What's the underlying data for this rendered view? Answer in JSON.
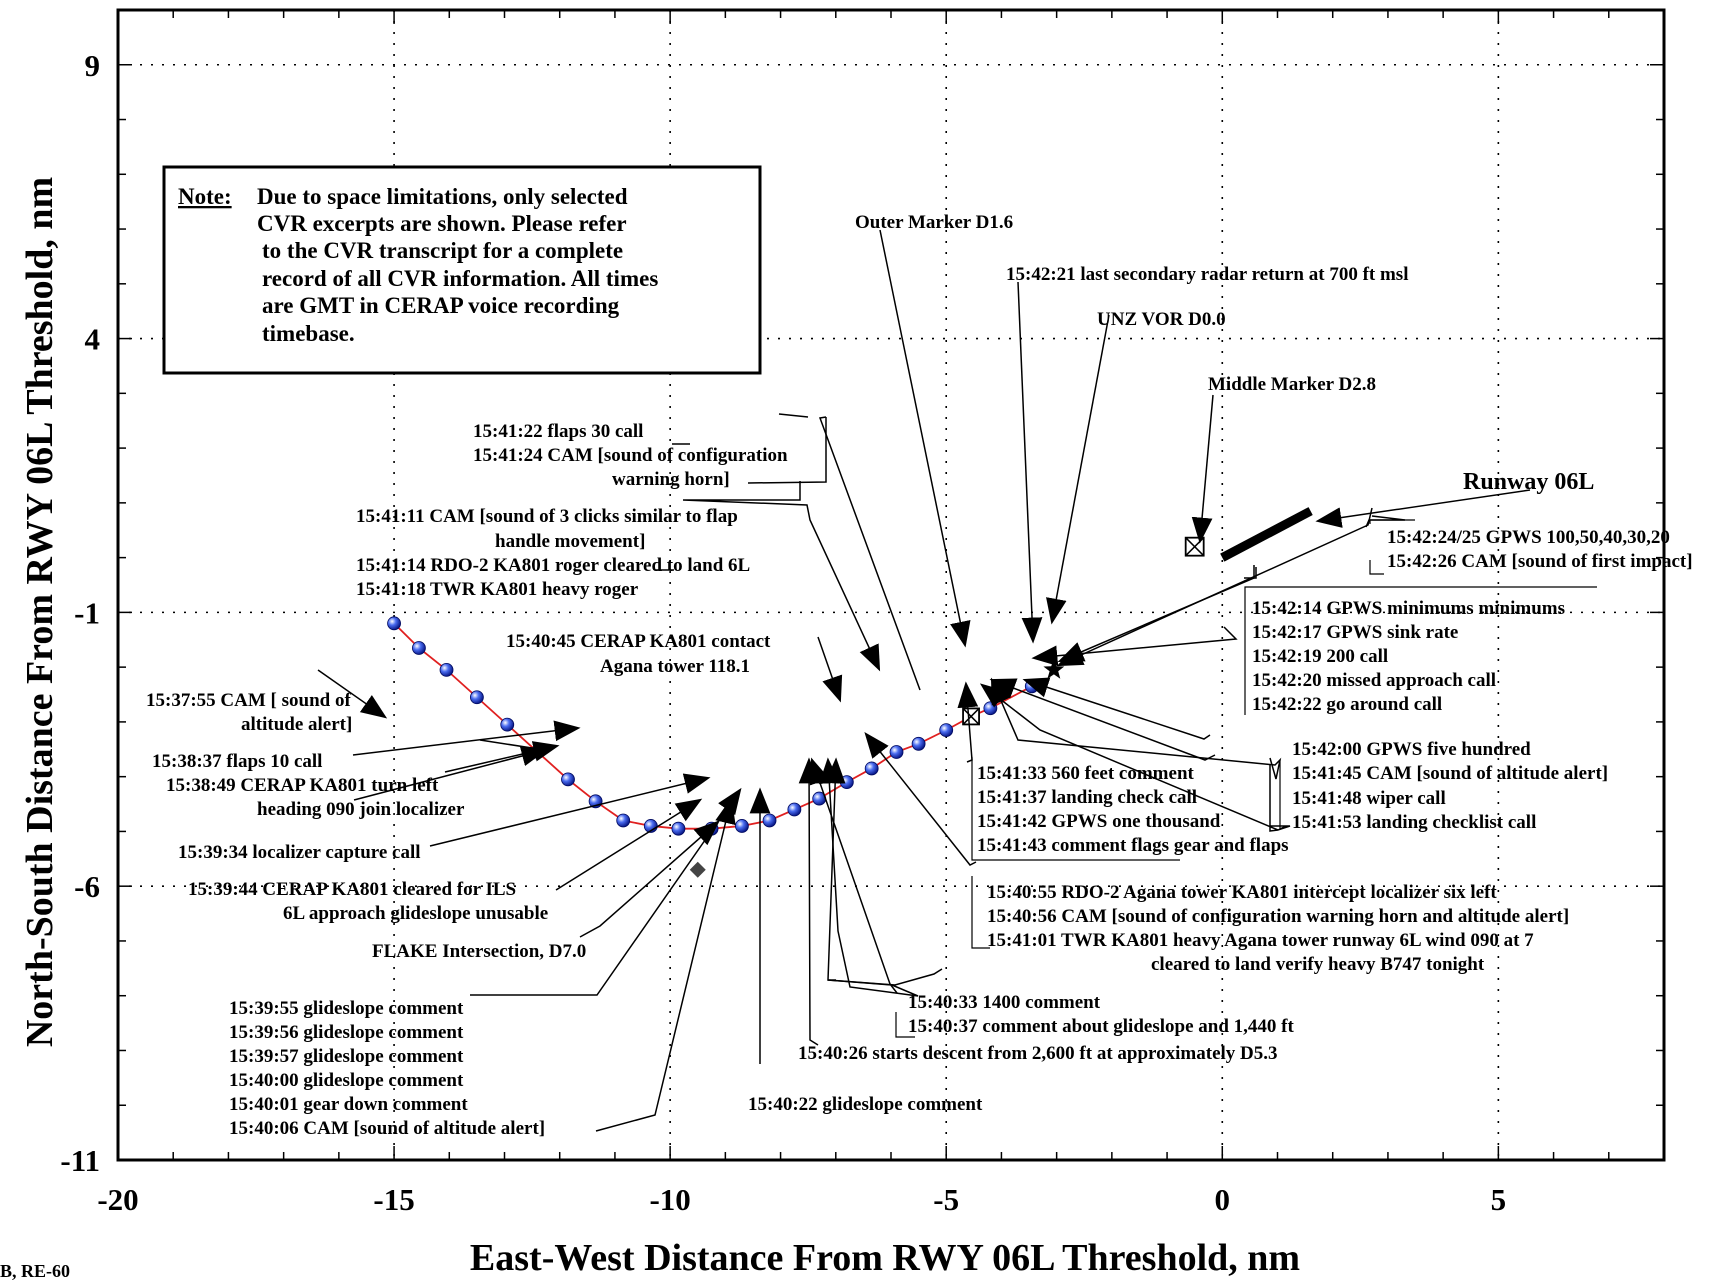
{
  "chart_data": {
    "type": "scatter",
    "xlabel": "East-West Distance From RWY 06L Threshold, nm",
    "ylabel": "North-South Distance From RWY 06L Threshold, nm",
    "xlim": [
      -20,
      8
    ],
    "ylim": [
      -11,
      10
    ],
    "grid": true,
    "x_ticks": [
      -20,
      -15,
      -10,
      -5,
      0,
      5
    ],
    "y_ticks": [
      9,
      4,
      -1,
      -6,
      -11
    ],
    "corner_label": "B, RE-60",
    "series": [
      {
        "points": [
          [
            -15.0,
            -1.2
          ],
          [
            -14.55,
            -1.65
          ],
          [
            -14.05,
            -2.05
          ],
          [
            -13.5,
            -2.55
          ],
          [
            -12.95,
            -3.05
          ],
          [
            -12.4,
            -3.55
          ],
          [
            -11.85,
            -4.05
          ],
          [
            -11.35,
            -4.45
          ],
          [
            -10.85,
            -4.8
          ],
          [
            -10.35,
            -4.9
          ],
          [
            -9.85,
            -4.95
          ],
          [
            -9.25,
            -4.95
          ],
          [
            -8.7,
            -4.9
          ],
          [
            -8.2,
            -4.8
          ],
          [
            -7.75,
            -4.6
          ],
          [
            -7.3,
            -4.4
          ],
          [
            -6.8,
            -4.1
          ],
          [
            -6.35,
            -3.85
          ],
          [
            -5.9,
            -3.55
          ],
          [
            -5.5,
            -3.4
          ],
          [
            -5.0,
            -3.15
          ],
          [
            -4.55,
            -2.9
          ],
          [
            -4.2,
            -2.75
          ],
          [
            -3.45,
            -2.35
          ]
        ]
      }
    ],
    "landmarks": {
      "outer_marker": [
        -4.55,
        -2.9
      ],
      "star": [
        -3.05,
        -2.05
      ],
      "middle_marker": [
        -0.5,
        0.2
      ],
      "flake_diamond": [
        -9.5,
        -5.7
      ],
      "runway": {
        "from": [
          0,
          0
        ],
        "to": [
          1.6,
          0.85
        ]
      }
    },
    "annotations": {
      "note_title": "Note:",
      "note_lines": [
        "Due to space limitations, only selected",
        "CVR excerpts are shown.  Please refer",
        "to the CVR transcript for a complete",
        "record of all CVR information.  All times",
        "are GMT in CERAP voice recording",
        "timebase."
      ],
      "outer_marker": "Outer Marker D1.6",
      "last_radar": "15:42:21 last secondary radar return at 700 ft msl",
      "unz_vor": "UNZ VOR D0.0",
      "middle_marker": "Middle Marker D2.8",
      "runway": "Runway 06L",
      "flaps30": [
        "15:41:22 flaps 30 call",
        "15:41:24 CAM [sound of configuration",
        "warning horn]"
      ],
      "clicks": [
        "15:41:11 CAM [sound of 3 clicks similar to flap",
        "handle movement]",
        "15:41:14 RDO-2 KA801 roger cleared to land 6L",
        "15:41:18 TWR KA801 heavy roger"
      ],
      "contact": [
        "15:40:45  CERAP  KA801 contact",
        "Agana tower 118.1"
      ],
      "alt_alert_1": [
        "15:37:55 CAM [ sound of",
        "altitude alert]"
      ],
      "flaps10": "15:38:37  flaps 10 call",
      "turn_left": [
        "15:38:49 CERAP  KA801 turn left",
        "heading 090 join localizer"
      ],
      "loc_capture": "15:39:34 localizer capture call",
      "ils": [
        "15:39:44  CERAP  KA801 cleared for ILS",
        "6L approach glideslope unusable"
      ],
      "flake": "FLAKE Intersection, D7.0",
      "glideslope_block": [
        "15:39:55  glideslope comment",
        "15:39:56  glideslope comment",
        "15:39:57  glideslope comment",
        "15:40:00  glideslope comment",
        "15:40:01  gear down comment",
        "15:40:06  CAM  [sound of altitude alert]"
      ],
      "gs_comment": "15:40:22 glideslope comment",
      "descent": "15:40:26 starts descent from 2,600 ft at approximately D5.3",
      "c1400": [
        "15:40:33 1400 comment",
        "15:40:37 comment about glideslope and 1,440 ft"
      ],
      "intercept": [
        "15:40:55 RDO-2 Agana tower KA801 intercept localizer six left",
        "15:40:56 CAM [sound of configuration warning horn and altitude alert]",
        "15:41:01 TWR KA801 heavy Agana tower runway 6L wind 090 at 7",
        "cleared to land verify heavy B747 tonight"
      ],
      "c560": [
        "15:41:33 560 feet comment",
        "15:41:37 landing check call",
        "15:41:42 GPWS one thousand",
        "15:41:43 comment flags gear and flaps"
      ],
      "gpws500": [
        "15:42:00 GPWS five hundred",
        "15:41:45 CAM [sound of altitude alert]",
        "15:41:48 wiper call",
        "15:41:53 landing checklist call"
      ],
      "minimums": [
        "15:42:14 GPWS minimums minimums",
        "15:42:17 GPWS sink rate",
        "15:42:19 200 call",
        "15:42:20 missed approach call",
        "15:42:22 go around call"
      ],
      "impact": [
        "15:42:24/25 GPWS 100,50,40,30,20",
        "15:42:26 CAM [sound of first impact]"
      ]
    }
  }
}
